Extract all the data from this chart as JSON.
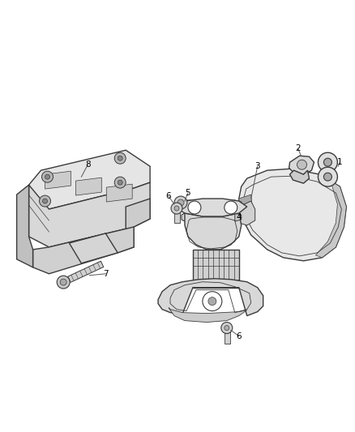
{
  "background_color": "#ffffff",
  "figsize": [
    4.38,
    5.33
  ],
  "dpi": 100,
  "lc": "#3a3a3a",
  "fc_light": "#e8e8e8",
  "fc_mid": "#d0d0d0",
  "fc_dark": "#b8b8b8",
  "fc_darker": "#999999"
}
